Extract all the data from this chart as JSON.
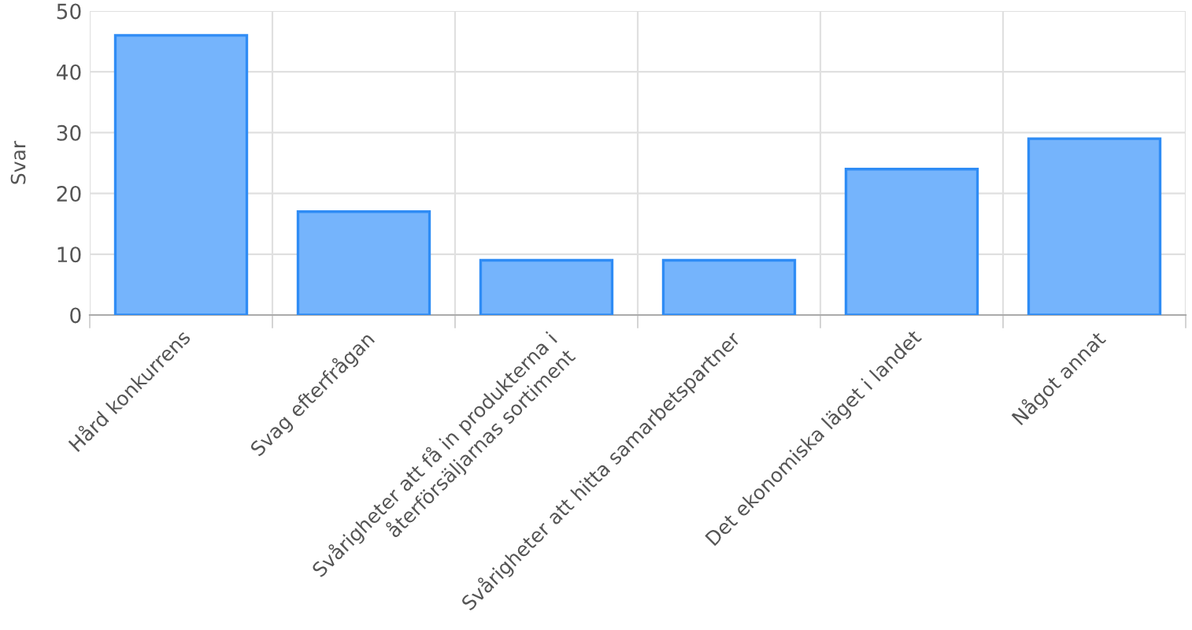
{
  "chart_data": {
    "type": "bar",
    "ylabel": "Svar",
    "categories": [
      "Hård konkurrens",
      "Svag efterfrågan",
      "Svårigheter att få in produkterna i\nåterförsäljarnas sortiment",
      "Svårigheter att hitta samarbetspartner",
      "Det ekonomiska läget i landet",
      "Något annat"
    ],
    "values": [
      46,
      17,
      9,
      9,
      24,
      29
    ],
    "color": "#75b4fc",
    "ylim": [
      0,
      50
    ],
    "yticks": [
      0,
      10,
      20,
      30,
      40,
      50
    ],
    "grid": true
  }
}
